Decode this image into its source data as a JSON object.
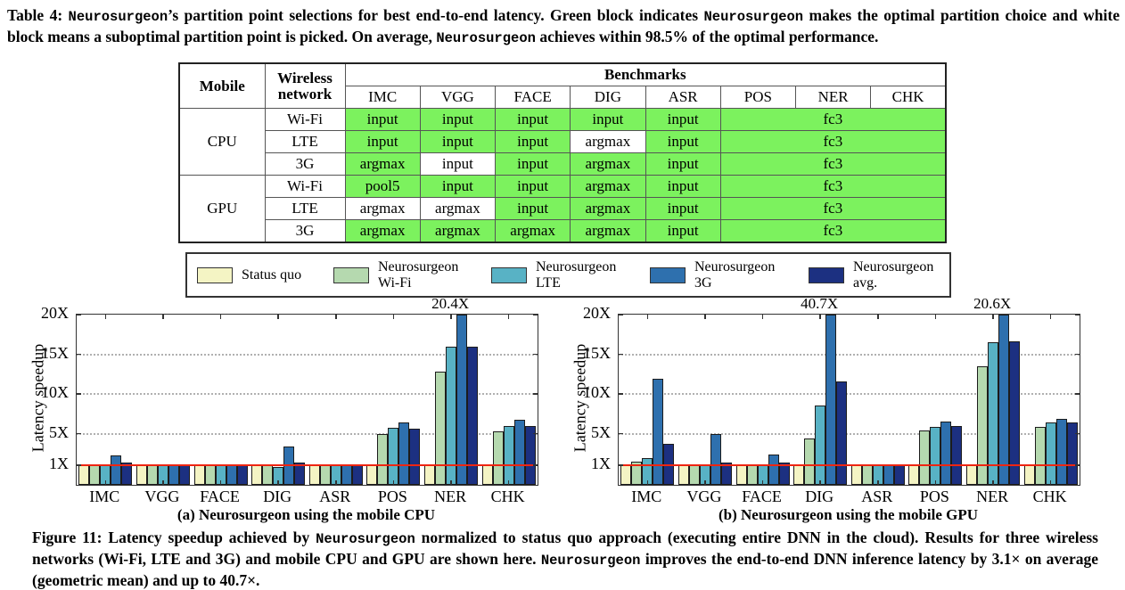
{
  "table_caption_segments": [
    {
      "t": "Table 4: "
    },
    {
      "t": "Neurosurgeon",
      "mono": true
    },
    {
      "t": "’s partition point selections for best end-to-end latency. Green block indicates "
    },
    {
      "t": "Neurosurgeon",
      "mono": true
    },
    {
      "t": " makes the optimal partition choice and white block means a suboptimal partition point is picked. On average, "
    },
    {
      "t": "Neurosurgeon",
      "mono": true
    },
    {
      "t": " achieves within 98.5% of the optimal performance."
    }
  ],
  "figure_caption_segments": [
    {
      "t": "Figure 11: Latency speedup achieved by "
    },
    {
      "t": "Neurosurgeon",
      "mono": true
    },
    {
      "t": " normalized to status quo approach (executing entire DNN in the cloud). Results for three wireless networks (Wi-Fi, LTE and 3G) and mobile CPU and GPU are shown here. "
    },
    {
      "t": "Neurosurgeon",
      "mono": true
    },
    {
      "t": " improves the end-to-end DNN inference latency by 3.1× on average (geometric mean) and up to 40.7×."
    }
  ],
  "table": {
    "header_mobile": "Mobile",
    "header_network": "Wireless network",
    "header_benchmarks": "Benchmarks",
    "benchmark_cols": [
      "IMC",
      "VGG",
      "FACE",
      "DIG",
      "ASR",
      "POS",
      "NER",
      "CHK"
    ],
    "highlight_color": "#7cf25e",
    "rows": [
      {
        "mobile": "CPU",
        "network": "Wi-Fi",
        "cells": [
          {
            "text": "input",
            "optimal": true
          },
          {
            "text": "input",
            "optimal": true
          },
          {
            "text": "input",
            "optimal": true
          },
          {
            "text": "input",
            "optimal": true
          },
          {
            "text": "input",
            "optimal": true
          }
        ],
        "fc3": {
          "text": "fc3",
          "optimal": true
        }
      },
      {
        "network": "LTE",
        "cells": [
          {
            "text": "input",
            "optimal": true
          },
          {
            "text": "input",
            "optimal": true
          },
          {
            "text": "input",
            "optimal": true
          },
          {
            "text": "argmax",
            "optimal": false
          },
          {
            "text": "input",
            "optimal": true
          }
        ],
        "fc3": {
          "text": "fc3",
          "optimal": true
        }
      },
      {
        "network": "3G",
        "cells": [
          {
            "text": "argmax",
            "optimal": true
          },
          {
            "text": "input",
            "optimal": false
          },
          {
            "text": "input",
            "optimal": true
          },
          {
            "text": "argmax",
            "optimal": true
          },
          {
            "text": "input",
            "optimal": true
          }
        ],
        "fc3": {
          "text": "fc3",
          "optimal": true
        }
      },
      {
        "mobile": "GPU",
        "network": "Wi-Fi",
        "cells": [
          {
            "text": "pool5",
            "optimal": true
          },
          {
            "text": "input",
            "optimal": true
          },
          {
            "text": "input",
            "optimal": true
          },
          {
            "text": "argmax",
            "optimal": true
          },
          {
            "text": "input",
            "optimal": true
          }
        ],
        "fc3": {
          "text": "fc3",
          "optimal": true
        }
      },
      {
        "network": "LTE",
        "cells": [
          {
            "text": "argmax",
            "optimal": false
          },
          {
            "text": "argmax",
            "optimal": false
          },
          {
            "text": "input",
            "optimal": true
          },
          {
            "text": "argmax",
            "optimal": true
          },
          {
            "text": "input",
            "optimal": true
          }
        ],
        "fc3": {
          "text": "fc3",
          "optimal": true
        }
      },
      {
        "network": "3G",
        "cells": [
          {
            "text": "argmax",
            "optimal": true
          },
          {
            "text": "argmax",
            "optimal": true
          },
          {
            "text": "argmax",
            "optimal": true
          },
          {
            "text": "argmax",
            "optimal": true
          },
          {
            "text": "input",
            "optimal": true
          }
        ],
        "fc3": {
          "text": "fc3",
          "optimal": true
        }
      }
    ]
  },
  "legend": {
    "entries": [
      {
        "lines": [
          "Status quo"
        ],
        "color": "#f4f4c4"
      },
      {
        "lines": [
          "Neurosurgeon",
          "Wi-Fi"
        ],
        "color": "#b5d9af"
      },
      {
        "lines": [
          "Neurosurgeon",
          "LTE"
        ],
        "color": "#58b2c5"
      },
      {
        "lines": [
          "Neurosurgeon",
          "3G"
        ],
        "color": "#2e70ae"
      },
      {
        "lines": [
          "Neurosurgeon",
          "avg."
        ],
        "color": "#1c3081"
      }
    ]
  },
  "chart_data": [
    {
      "type": "bar",
      "title": "(a) Neurosurgeon using the mobile CPU",
      "ylabel": "Latency speedup",
      "categories": [
        "IMC",
        "VGG",
        "FACE",
        "DIG",
        "ASR",
        "POS",
        "NER",
        "CHK"
      ],
      "ytick_labels": [
        "1X",
        "5X",
        "10X",
        "15X",
        "20X"
      ],
      "ytick_values": [
        1,
        5,
        10,
        15,
        20
      ],
      "ylim": [
        -1.45,
        20
      ],
      "gridlines": [
        5,
        10,
        15
      ],
      "baseline_value": 1,
      "baseline_color": "#ef2511",
      "legend_position": "shared-top",
      "series": [
        {
          "name": "Status quo",
          "color": "#f4f4c4",
          "values": [
            1,
            1,
            1,
            1,
            1,
            1,
            1,
            1
          ]
        },
        {
          "name": "Neurosurgeon Wi-Fi",
          "color": "#b5d9af",
          "values": [
            1.0,
            1.0,
            1.0,
            1.0,
            1.0,
            5.0,
            12.8,
            5.3
          ]
        },
        {
          "name": "Neurosurgeon LTE",
          "color": "#58b2c5",
          "values": [
            1.1,
            1.0,
            1.0,
            0.8,
            1.0,
            5.7,
            16.0,
            6.0
          ]
        },
        {
          "name": "Neurosurgeon 3G",
          "color": "#2e70ae",
          "values": [
            2.3,
            1.0,
            1.05,
            3.4,
            1.05,
            6.4,
            20.4,
            6.8
          ]
        },
        {
          "name": "Neurosurgeon avg.",
          "color": "#1c3081",
          "values": [
            1.4,
            1.0,
            1.0,
            1.4,
            1.0,
            5.6,
            16.0,
            6.0
          ]
        }
      ],
      "annotations": [
        {
          "category": "NER",
          "text": "20.4X"
        }
      ]
    },
    {
      "type": "bar",
      "title": "(b) Neurosurgeon using the mobile GPU",
      "ylabel": "Latency speedup",
      "categories": [
        "IMC",
        "VGG",
        "FACE",
        "DIG",
        "ASR",
        "POS",
        "NER",
        "CHK"
      ],
      "ytick_labels": [
        "1X",
        "5X",
        "10X",
        "15X",
        "20X"
      ],
      "ytick_values": [
        1,
        5,
        10,
        15,
        20
      ],
      "ylim": [
        -1.45,
        20
      ],
      "gridlines": [
        5,
        10,
        15
      ],
      "baseline_value": 1,
      "baseline_color": "#ef2511",
      "legend_position": "shared-top",
      "series": [
        {
          "name": "Status quo",
          "color": "#f4f4c4",
          "values": [
            1,
            1,
            1,
            1,
            1,
            1,
            1,
            1
          ]
        },
        {
          "name": "Neurosurgeon Wi-Fi",
          "color": "#b5d9af",
          "values": [
            1.5,
            1.0,
            1.0,
            4.4,
            1.0,
            5.4,
            13.5,
            5.8
          ]
        },
        {
          "name": "Neurosurgeon LTE",
          "color": "#58b2c5",
          "values": [
            1.9,
            1.05,
            1.05,
            8.5,
            1.0,
            5.9,
            16.5,
            6.4
          ]
        },
        {
          "name": "Neurosurgeon 3G",
          "color": "#2e70ae",
          "values": [
            11.9,
            5.0,
            2.4,
            40.7,
            1.05,
            6.5,
            20.6,
            6.9
          ]
        },
        {
          "name": "Neurosurgeon avg.",
          "color": "#1c3081",
          "values": [
            3.7,
            1.4,
            1.35,
            11.6,
            1.0,
            6.0,
            16.6,
            6.4
          ]
        }
      ],
      "annotations": [
        {
          "category": "DIG",
          "text": "40.7X"
        },
        {
          "category": "NER",
          "text": "20.6X"
        }
      ]
    }
  ]
}
